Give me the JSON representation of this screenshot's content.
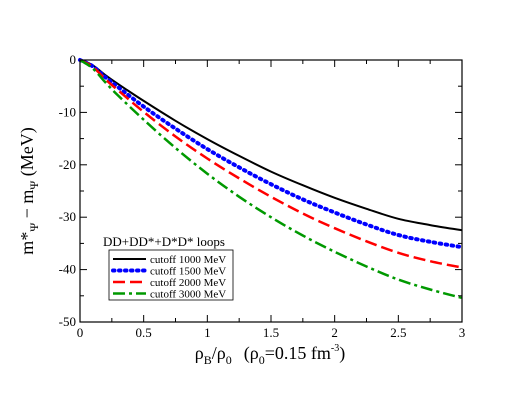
{
  "chart_data": {
    "type": "line",
    "title": "",
    "xlim": [
      0,
      3
    ],
    "ylim": [
      -50,
      0
    ],
    "x_ticks": [
      0,
      0.5,
      1,
      1.5,
      2,
      2.5,
      3
    ],
    "y_ticks": [
      0,
      -10,
      -20,
      -30,
      -40,
      -50
    ],
    "x_tick_labels": [
      "0",
      "0.5",
      "1",
      "1.5",
      "2",
      "2.5",
      "3"
    ],
    "y_tick_labels": [
      "0",
      "-10",
      "-20",
      "-30",
      "-40",
      "-50"
    ],
    "xlabel": {
      "rho": "ρ",
      "sub_b": "B",
      "slash": "/",
      "sub_0": "0",
      "paren": "(ρ",
      "paren_sub": "0",
      "paren_eq": "=0.15 fm",
      "paren_sup": "-3",
      "paren_close": ")"
    },
    "ylabel": {
      "m1": "m*",
      "sub1": "Ψ",
      "minus": " − m",
      "sub2": "Ψ",
      "unit": " (MeV)"
    },
    "annotation": "DD+DD*+D*D* loops",
    "legend_position": "lower-left",
    "series": [
      {
        "name": "cutoff 1000 MeV",
        "color": "#000000",
        "style": "solid",
        "x": [
          0,
          0.1,
          0.2,
          0.3,
          0.5,
          0.75,
          1.0,
          1.25,
          1.5,
          1.75,
          2.0,
          2.25,
          2.5,
          2.75,
          3.0
        ],
        "y": [
          0,
          -1.0,
          -2.9,
          -4.6,
          -7.8,
          -11.6,
          -15.1,
          -18.3,
          -21.3,
          -23.9,
          -26.3,
          -28.4,
          -30.3,
          -31.5,
          -32.5
        ]
      },
      {
        "name": "cutoff 1500 MeV",
        "color": "#0000ff",
        "style": "dotted",
        "x": [
          0,
          0.1,
          0.2,
          0.3,
          0.5,
          0.75,
          1.0,
          1.25,
          1.5,
          1.75,
          2.0,
          2.25,
          2.5,
          2.75,
          3.0
        ],
        "y": [
          0,
          -1.2,
          -3.3,
          -5.2,
          -8.9,
          -13.1,
          -17.0,
          -20.5,
          -23.7,
          -26.6,
          -29.1,
          -31.4,
          -33.4,
          -34.7,
          -35.7
        ]
      },
      {
        "name": "cutoff 2000 MeV",
        "color": "#ff0000",
        "style": "dashed",
        "x": [
          0,
          0.1,
          0.2,
          0.3,
          0.5,
          0.75,
          1.0,
          1.25,
          1.5,
          1.75,
          2.0,
          2.25,
          2.5,
          2.75,
          3.0
        ],
        "y": [
          0,
          -1.3,
          -3.7,
          -5.8,
          -9.9,
          -14.6,
          -18.8,
          -22.6,
          -26.1,
          -29.3,
          -32.1,
          -34.6,
          -36.8,
          -38.4,
          -39.6
        ]
      },
      {
        "name": "cutoff 3000 MeV",
        "color": "#009900",
        "style": "dashdot",
        "x": [
          0,
          0.1,
          0.2,
          0.3,
          0.5,
          0.75,
          1.0,
          1.25,
          1.5,
          1.75,
          2.0,
          2.25,
          2.5,
          2.75,
          3.0
        ],
        "y": [
          0,
          -1.6,
          -4.3,
          -6.8,
          -11.4,
          -16.8,
          -21.7,
          -26.1,
          -30.0,
          -33.5,
          -36.6,
          -39.4,
          -41.9,
          -43.8,
          -45.4
        ]
      }
    ]
  }
}
